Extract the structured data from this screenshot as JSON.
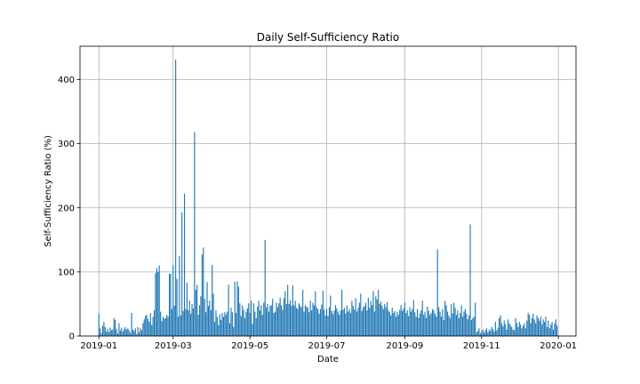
{
  "chart_data": {
    "type": "bar",
    "title": "Daily Self-Sufficiency Ratio",
    "xlabel": "Date",
    "ylabel": "Self-Sufficiency Ratio (%)",
    "x_start": "2019-01-01",
    "x_end": "2019-12-31",
    "xlim": [
      "2018-12-17",
      "2020-01-15"
    ],
    "ylim": [
      0,
      452
    ],
    "grid": true,
    "color": "#1f77b4",
    "x_ticks": [
      "2019-01",
      "2019-03",
      "2019-05",
      "2019-07",
      "2019-09",
      "2019-11",
      "2020-01"
    ],
    "y_ticks": [
      0,
      100,
      200,
      300,
      400
    ],
    "values": [
      35,
      12,
      4,
      16,
      22,
      14,
      7,
      11,
      6,
      13,
      9,
      10,
      28,
      25,
      11,
      4,
      20,
      9,
      13,
      7,
      11,
      14,
      10,
      12,
      9,
      5,
      36,
      10,
      8,
      12,
      3,
      14,
      6,
      12,
      9,
      20,
      26,
      31,
      33,
      27,
      22,
      36,
      17,
      30,
      40,
      98,
      106,
      100,
      110,
      38,
      23,
      30,
      27,
      28,
      33,
      30,
      97,
      97,
      42,
      110,
      47,
      431,
      89,
      30,
      125,
      32,
      193,
      39,
      222,
      42,
      83,
      40,
      55,
      35,
      50,
      43,
      318,
      72,
      80,
      33,
      48,
      62,
      127,
      138,
      58,
      37,
      84,
      47,
      55,
      40,
      111,
      66,
      22,
      40,
      30,
      17,
      34,
      25,
      36,
      30,
      37,
      33,
      38,
      80,
      20,
      44,
      37,
      14,
      85,
      36,
      85,
      77,
      51,
      31,
      48,
      41,
      28,
      38,
      43,
      51,
      36,
      55,
      19,
      51,
      38,
      28,
      46,
      55,
      40,
      48,
      33,
      52,
      150,
      44,
      50,
      38,
      47,
      48,
      58,
      36,
      38,
      52,
      45,
      51,
      60,
      48,
      41,
      59,
      70,
      50,
      80,
      50,
      56,
      47,
      79,
      48,
      55,
      44,
      42,
      51,
      47,
      45,
      72,
      38,
      48,
      46,
      44,
      37,
      55,
      40,
      52,
      48,
      70,
      45,
      42,
      35,
      42,
      49,
      71,
      41,
      32,
      42,
      31,
      45,
      63,
      39,
      34,
      40,
      48,
      43,
      38,
      33,
      40,
      72,
      41,
      44,
      35,
      48,
      38,
      42,
      36,
      55,
      47,
      41,
      59,
      38,
      44,
      52,
      66,
      39,
      45,
      47,
      52,
      40,
      60,
      44,
      55,
      48,
      70,
      38,
      62,
      57,
      72,
      50,
      54,
      47,
      42,
      50,
      45,
      53,
      40,
      37,
      32,
      44,
      36,
      39,
      30,
      38,
      33,
      41,
      48,
      39,
      43,
      52,
      36,
      40,
      31,
      45,
      38,
      42,
      56,
      37,
      30,
      42,
      28,
      35,
      40,
      55,
      33,
      38,
      28,
      46,
      39,
      33,
      36,
      42,
      40,
      35,
      30,
      135,
      45,
      38,
      30,
      42,
      25,
      55,
      48,
      38,
      32,
      28,
      50,
      35,
      52,
      44,
      33,
      40,
      28,
      36,
      48,
      30,
      38,
      42,
      35,
      26,
      32,
      174,
      25,
      28,
      30,
      52,
      6,
      8,
      12,
      4,
      7,
      10,
      5,
      9,
      12,
      6,
      10,
      8,
      14,
      11,
      7,
      22,
      9,
      13,
      28,
      32,
      20,
      15,
      24,
      18,
      10,
      26,
      20,
      17,
      14,
      10,
      9,
      28,
      20,
      14,
      22,
      18,
      12,
      16,
      20,
      12,
      24,
      36,
      33,
      20,
      28,
      35,
      26,
      20,
      32,
      28,
      24,
      30,
      18,
      26,
      22,
      30,
      14,
      24,
      12,
      18,
      22,
      10,
      20,
      26,
      16
    ]
  }
}
